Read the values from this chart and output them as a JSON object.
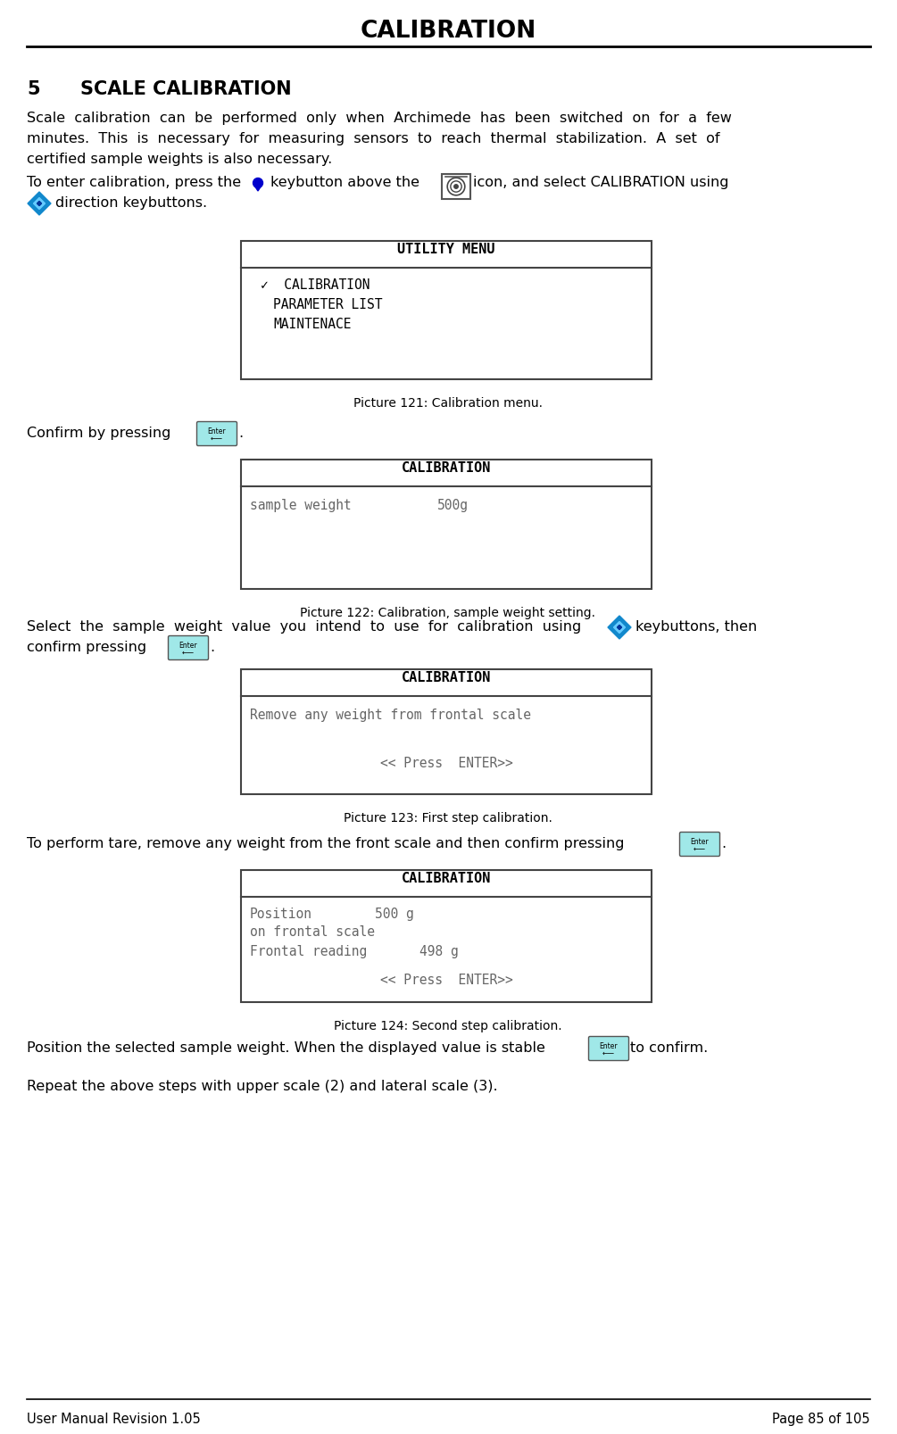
{
  "title": "CALIBRATION",
  "section_number": "5",
  "section_title": "SCALE CALIBRATION",
  "pic121_caption": "Picture 121: Calibration menu.",
  "pic122_caption": "Picture 122: Calibration, sample weight setting.",
  "pic123_caption": "Picture 123: First step calibration.",
  "pic124_caption": "Picture 124: Second step calibration.",
  "footer_left": "User Manual Revision 1.05",
  "footer_right": "Page 85 of 105",
  "bg_color": "#ffffff",
  "text_color": "#000000",
  "box_border_color": "#444444",
  "btn_color": "#a0e8e8",
  "hdr_line_color": "#444444"
}
